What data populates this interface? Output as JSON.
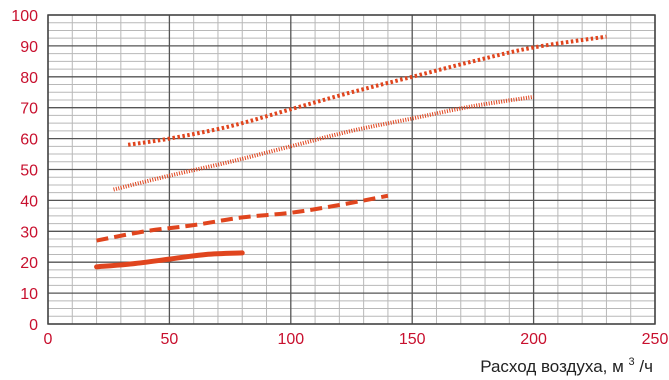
{
  "chart_data": {
    "type": "line",
    "xlabel": "Расход воздуха, м³/ч",
    "xlabel_parts": [
      "Расход воздуха, м",
      "3",
      "/ч"
    ],
    "ylabel": "",
    "xlim": [
      0,
      250
    ],
    "ylim": [
      0,
      100
    ],
    "x_ticks": [
      0,
      50,
      100,
      150,
      200,
      250
    ],
    "x_tick_labels": [
      "0",
      "50",
      "100",
      "150",
      "200",
      "250"
    ],
    "y_ticks": [
      0,
      10,
      20,
      30,
      40,
      50,
      60,
      70,
      80,
      90,
      100
    ],
    "y_tick_labels": [
      "0",
      "10",
      "20",
      "30",
      "40",
      "50",
      "60",
      "70",
      "80",
      "90",
      "100"
    ],
    "grid": true,
    "legend": "none",
    "colors": {
      "series": "#e0451e",
      "tick_label": "#c8102e",
      "grid_major": "#555555",
      "grid_minor": "#b8b8b8"
    },
    "series": [
      {
        "style": "solid-thick",
        "x": [
          20,
          35,
          50,
          65,
          80
        ],
        "y": [
          18.5,
          19.5,
          21,
          22.5,
          23
        ]
      },
      {
        "style": "dashed",
        "x": [
          20,
          40,
          60,
          80,
          100,
          120,
          140
        ],
        "y": [
          27,
          30,
          32,
          34.5,
          36,
          38.5,
          41.5
        ]
      },
      {
        "style": "fine-hatched",
        "x": [
          27,
          50,
          75,
          100,
          125,
          150,
          175,
          200
        ],
        "y": [
          43.5,
          48,
          52.5,
          57.5,
          62.5,
          66.5,
          70.5,
          73.5
        ]
      },
      {
        "style": "dotted",
        "x": [
          33,
          50,
          75,
          100,
          125,
          150,
          175,
          200,
          230
        ],
        "y": [
          58,
          60,
          64,
          69.5,
          75,
          80,
          85,
          89.5,
          93
        ]
      }
    ]
  }
}
